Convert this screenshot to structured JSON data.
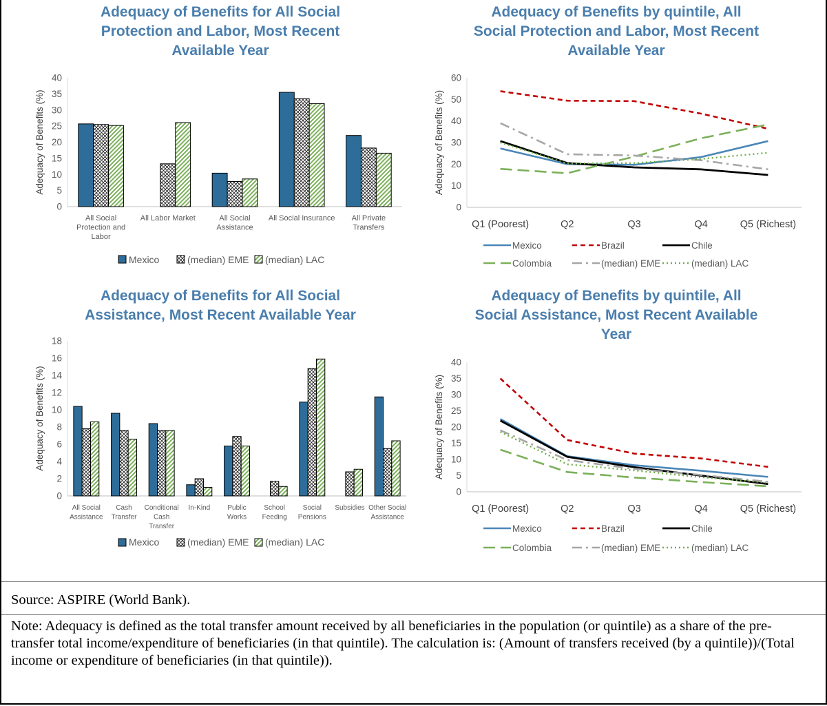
{
  "colors": {
    "mexico": "#2e6d99",
    "eme_hatch": "#222222",
    "lac_hatch": "#7bb059",
    "brazil": "#c00000",
    "chile": "#000000",
    "colombia": "#7bb059",
    "eme_line": "#a6a6a6",
    "lac_line": "#70ad47",
    "mexico_line": "#4a86b8",
    "title": "#4a7ead"
  },
  "charts": [
    {
      "id": "c1",
      "title_lines": [
        "Adequacy of Benefits for All Social",
        "Protection and Labor, Most Recent",
        "Available Year"
      ],
      "chart_data": {
        "type": "bar",
        "ylabel": "Adequacy of Benefits (%)",
        "ylim": [
          0,
          40
        ],
        "yticks": [
          0,
          5,
          10,
          15,
          20,
          25,
          30,
          35,
          40
        ],
        "grid": false,
        "legend": "bottom",
        "categories": [
          [
            "All Social",
            "Protection and",
            "Labor"
          ],
          [
            "All Labor Market"
          ],
          [
            "All Social",
            "Assistance"
          ],
          [
            "All Social Insurance"
          ],
          [
            "All Private",
            "Transfers"
          ]
        ],
        "series": [
          {
            "name": "Mexico",
            "values": [
              25.7,
              null,
              10.4,
              35.5,
              22.1
            ]
          },
          {
            "name": "(median) EME",
            "values": [
              25.5,
              13.3,
              7.8,
              33.5,
              18.2
            ]
          },
          {
            "name": "(median) LAC",
            "values": [
              25.2,
              26.1,
              8.6,
              32.0,
              16.6
            ]
          }
        ]
      }
    },
    {
      "id": "c2",
      "title_lines": [
        "Adequacy of Benefits by quintile, All",
        "Social Protection and Labor, Most Recent",
        "Available Year"
      ],
      "chart_data": {
        "type": "line",
        "ylabel": "Adequacy of Benefits (%)",
        "ylim": [
          0,
          60
        ],
        "yticks": [
          0,
          10,
          20,
          30,
          40,
          50,
          60
        ],
        "grid": false,
        "legend": "bottom",
        "x": [
          "Q1 (Poorest)",
          "Q2",
          "Q3",
          "Q4",
          "Q5 (Richest)"
        ],
        "series": [
          {
            "name": "Mexico",
            "values": [
              27.3,
              20.0,
              19.7,
              23.3,
              30.7
            ]
          },
          {
            "name": "Brazil",
            "values": [
              53.8,
              49.4,
              49.2,
              43.4,
              36.4
            ]
          },
          {
            "name": "Chile",
            "values": [
              30.7,
              20.5,
              18.5,
              17.6,
              15.0
            ]
          },
          {
            "name": "Colombia",
            "values": [
              17.8,
              15.8,
              23.5,
              32.0,
              38.4
            ]
          },
          {
            "name": "(median) EME",
            "values": [
              39.0,
              24.6,
              24.0,
              21.8,
              17.6
            ]
          },
          {
            "name": "(median) LAC",
            "values": [
              30.0,
              20.3,
              20.5,
              22.4,
              25.3
            ]
          }
        ]
      }
    },
    {
      "id": "c3",
      "title_lines": [
        "Adequacy of Benefits for All Social",
        "Assistance, Most Recent Available Year"
      ],
      "chart_data": {
        "type": "bar",
        "ylabel": "Adequacy of Benefits (%)",
        "ylim": [
          0,
          18
        ],
        "yticks": [
          0,
          2,
          4,
          6,
          8,
          10,
          12,
          14,
          16,
          18
        ],
        "grid": false,
        "legend": "bottom",
        "categories": [
          [
            "All Social",
            "Assistance"
          ],
          [
            "Cash",
            "Transfer"
          ],
          [
            "Conditional",
            "Cash",
            "Transfer"
          ],
          [
            "In-Kind"
          ],
          [
            "Public",
            "Works"
          ],
          [
            "School",
            "Feeding"
          ],
          [
            "Social",
            "Pensions"
          ],
          [
            "Subsidies"
          ],
          [
            "Other Social",
            "Assistance"
          ]
        ],
        "series": [
          {
            "name": "Mexico",
            "values": [
              10.4,
              9.6,
              8.4,
              1.3,
              5.8,
              null,
              10.9,
              null,
              11.5
            ]
          },
          {
            "name": "(median) EME",
            "values": [
              7.8,
              7.6,
              7.6,
              2.0,
              6.9,
              1.7,
              14.8,
              2.8,
              5.5
            ]
          },
          {
            "name": "(median) LAC",
            "values": [
              8.6,
              6.6,
              7.6,
              1.0,
              5.8,
              1.1,
              15.9,
              3.1,
              6.4
            ]
          }
        ]
      }
    },
    {
      "id": "c4",
      "title_lines": [
        "Adequacy of Benefits by quintile, All",
        "Social Assistance, Most Recent Available",
        "Year"
      ],
      "chart_data": {
        "type": "line",
        "ylabel": "Adequacy of Benefits (%)",
        "ylim": [
          0,
          40
        ],
        "yticks": [
          0,
          5,
          10,
          15,
          20,
          25,
          30,
          35,
          40
        ],
        "grid": false,
        "legend": "bottom",
        "x": [
          "Q1 (Poorest)",
          "Q2",
          "Q3",
          "Q4",
          "Q5 (Richest)"
        ],
        "series": [
          {
            "name": "Mexico",
            "values": [
              22.5,
              11.0,
              8.2,
              6.5,
              4.6
            ]
          },
          {
            "name": "Brazil",
            "values": [
              35.0,
              16.0,
              11.8,
              10.3,
              7.7
            ]
          },
          {
            "name": "Chile",
            "values": [
              22.0,
              10.8,
              7.6,
              5.0,
              2.4
            ]
          },
          {
            "name": "Colombia",
            "values": [
              13.0,
              6.1,
              4.4,
              3.0,
              1.7
            ]
          },
          {
            "name": "(median) EME",
            "values": [
              19.0,
              9.8,
              7.1,
              5.2,
              3.1
            ]
          },
          {
            "name": "(median) LAC",
            "values": [
              18.5,
              8.5,
              6.6,
              4.5,
              2.8
            ]
          }
        ]
      }
    }
  ],
  "footer": {
    "source": "Source: ASPIRE (World Bank).",
    "note": "Note: Adequacy is defined as the total transfer amount received by all beneficiaries in the population (or quintile) as a share of the pre-transfer total income/expenditure of beneficiaries (in that quintile). The calculation is: (Amount of transfers received (by a quintile))/(Total income or expenditure of beneficiaries (in that quintile))."
  }
}
